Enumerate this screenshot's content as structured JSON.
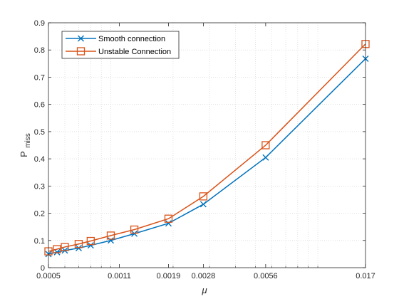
{
  "chart_data": {
    "type": "line",
    "x_scale": "log",
    "xlabel": "μ",
    "ylabel": "P",
    "ylabel_subscript": "miss",
    "xlim": [
      0.0005,
      0.017
    ],
    "ylim": [
      0,
      0.9
    ],
    "x_ticks": [
      0.0005,
      0.0011,
      0.0019,
      0.0028,
      0.0056,
      0.017
    ],
    "x_tick_labels": [
      "0.0005",
      "0.0011",
      "0.0019",
      "0.0028",
      "0.0056",
      "0.017"
    ],
    "y_ticks": [
      0,
      0.1,
      0.2,
      0.3,
      0.4,
      0.5,
      0.6,
      0.7,
      0.8,
      0.9
    ],
    "y_tick_labels": [
      "0",
      "0.1",
      "0.2",
      "0.3",
      "0.4",
      "0.5",
      "0.6",
      "0.7",
      "0.8",
      "0.9"
    ],
    "grid": "y-major and x-minor dotted",
    "legend_position": "top-left",
    "series": [
      {
        "name": "Smooth connection",
        "color": "#0072BD",
        "marker": "x",
        "x": [
          0.0005,
          0.00055,
          0.0006,
          0.0007,
          0.0008,
          0.001,
          0.0013,
          0.0019,
          0.0028,
          0.0056,
          0.017
        ],
        "y": [
          0.05,
          0.057,
          0.063,
          0.072,
          0.082,
          0.1,
          0.125,
          0.163,
          0.233,
          0.405,
          0.768
        ]
      },
      {
        "name": "Unstable Connection",
        "color": "#D95319",
        "marker": "square",
        "x": [
          0.0005,
          0.00055,
          0.0006,
          0.0007,
          0.0008,
          0.001,
          0.0013,
          0.0019,
          0.0028,
          0.0056,
          0.017
        ],
        "y": [
          0.06,
          0.068,
          0.076,
          0.087,
          0.098,
          0.118,
          0.14,
          0.18,
          0.262,
          0.45,
          0.822
        ]
      }
    ]
  }
}
